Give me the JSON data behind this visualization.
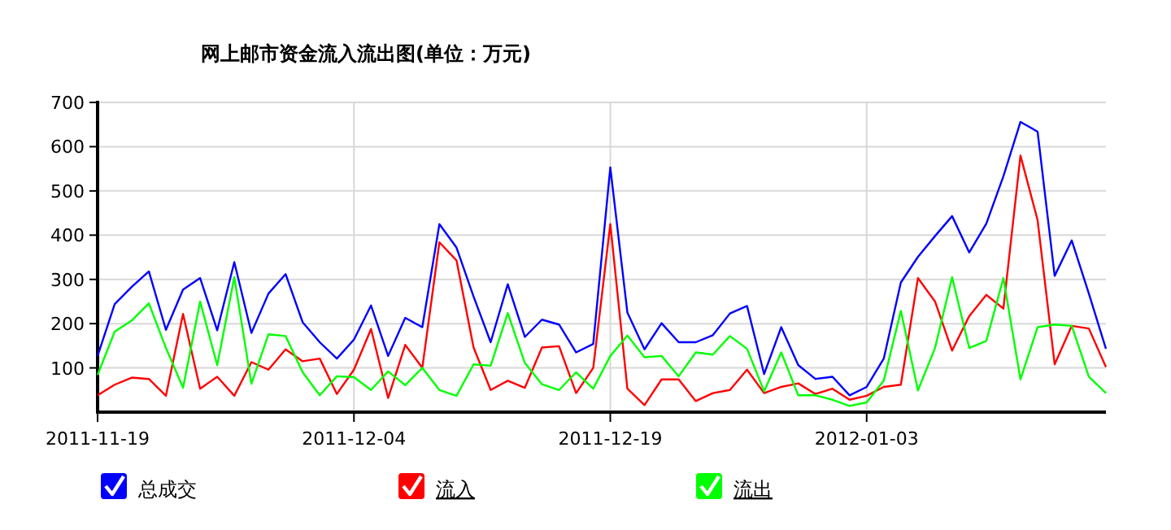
{
  "chart_data": {
    "type": "line",
    "title": "网上邮市资金流入流出图(单位：万元)",
    "x": [
      "2011-11-19",
      "2011-11-20",
      "2011-11-21",
      "2011-11-22",
      "2011-11-23",
      "2011-11-24",
      "2011-11-25",
      "2011-11-26",
      "2011-11-27",
      "2011-11-28",
      "2011-11-29",
      "2011-11-30",
      "2011-12-01",
      "2011-12-02",
      "2011-12-03",
      "2011-12-04",
      "2011-12-05",
      "2011-12-06",
      "2011-12-07",
      "2011-12-08",
      "2011-12-09",
      "2011-12-10",
      "2011-12-11",
      "2011-12-12",
      "2011-12-13",
      "2011-12-14",
      "2011-12-15",
      "2011-12-16",
      "2011-12-17",
      "2011-12-18",
      "2011-12-19",
      "2011-12-20",
      "2011-12-21",
      "2011-12-22",
      "2011-12-23",
      "2011-12-24",
      "2011-12-25",
      "2011-12-26",
      "2011-12-27",
      "2011-12-28",
      "2011-12-29",
      "2011-12-30",
      "2011-12-31",
      "2012-01-01",
      "2012-01-02",
      "2012-01-03",
      "2012-01-04",
      "2012-01-05",
      "2012-01-06",
      "2012-01-07",
      "2012-01-08",
      "2012-01-09",
      "2012-01-10",
      "2012-01-11",
      "2012-01-12",
      "2012-01-13",
      "2012-01-14",
      "2012-01-15",
      "2012-01-16",
      "2012-01-17"
    ],
    "series": [
      {
        "name": "总成交",
        "color": "#0000ff",
        "values": [
          127,
          244,
          283,
          318,
          186,
          277,
          303,
          185,
          339,
          179,
          268,
          312,
          203,
          158,
          121,
          164,
          241,
          127,
          213,
          192,
          425,
          372,
          261,
          158,
          289,
          170,
          209,
          198,
          135,
          154,
          553,
          225,
          142,
          201,
          158,
          158,
          174,
          223,
          240,
          86,
          192,
          106,
          75,
          80,
          38,
          57,
          121,
          293,
          351,
          398,
          443,
          361,
          426,
          533,
          656,
          634,
          308,
          388,
          268,
          143
        ]
      },
      {
        "name": "流入",
        "color": "#ff0000",
        "values": [
          38,
          62,
          78,
          75,
          37,
          222,
          53,
          80,
          37,
          113,
          96,
          142,
          115,
          121,
          41,
          96,
          188,
          32,
          152,
          100,
          384,
          343,
          146,
          50,
          71,
          55,
          146,
          149,
          43,
          100,
          425,
          53,
          16,
          74,
          74,
          25,
          43,
          50,
          96,
          43,
          57,
          65,
          41,
          53,
          28,
          37,
          57,
          62,
          303,
          250,
          139,
          217,
          265,
          234,
          580,
          434,
          108,
          195,
          189,
          102
        ]
      },
      {
        "name": "流出",
        "color": "#00ff00",
        "values": [
          84,
          182,
          207,
          246,
          145,
          55,
          250,
          106,
          305,
          64,
          176,
          172,
          90,
          38,
          81,
          79,
          50,
          92,
          61,
          100,
          50,
          37,
          108,
          105,
          224,
          111,
          63,
          50,
          90,
          53,
          127,
          173,
          124,
          127,
          81,
          135,
          130,
          172,
          143,
          47,
          135,
          38,
          38,
          28,
          14,
          22,
          71,
          229,
          49,
          145,
          305,
          145,
          161,
          303,
          74,
          192,
          198,
          195,
          80,
          43
        ]
      }
    ],
    "xlim": [
      "2011-11-19",
      "2012-01-17"
    ],
    "ylim": [
      0,
      700
    ],
    "xticks": [
      "2011-11-19",
      "2011-12-04",
      "2011-12-19",
      "2012-01-03"
    ],
    "yticks": [
      100,
      200,
      300,
      400,
      500,
      600,
      700
    ],
    "grid": true,
    "legend": "bottom"
  }
}
